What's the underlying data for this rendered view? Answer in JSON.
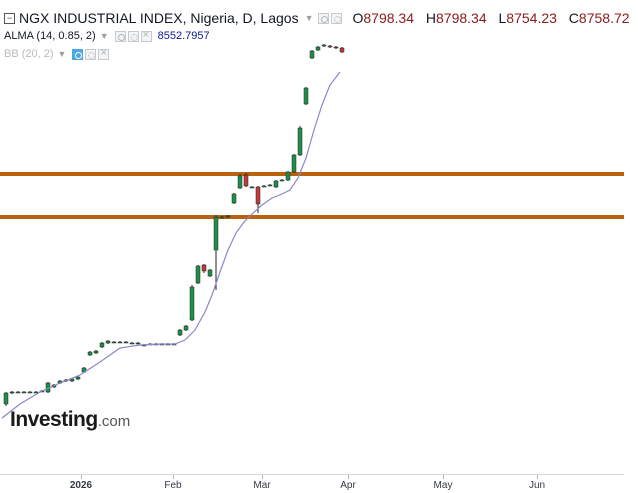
{
  "header": {
    "title": "NGX INDUSTRIAL INDEX, Nigeria, D, Lagos",
    "ohlc": {
      "open_label": "O",
      "open": "8798.34",
      "high_label": "H",
      "high": "8798.34",
      "low_label": "L",
      "low": "8754.23",
      "close_label": "C",
      "close": "8758.72"
    }
  },
  "indicators": {
    "alma": {
      "label": "ALMA (14, 0.85, 2)",
      "value": "8552.7957"
    },
    "bb": {
      "label": "BB (20, 2)"
    }
  },
  "logo": {
    "text": "Investing",
    "suffix": ".com"
  },
  "x_axis": {
    "ticks": [
      {
        "label": "2026",
        "bold": true
      },
      {
        "label": "Feb",
        "bold": false
      },
      {
        "label": "Mar",
        "bold": false
      },
      {
        "label": "Apr",
        "bold": false
      },
      {
        "label": "May",
        "bold": false
      },
      {
        "label": "Jun",
        "bold": false
      }
    ]
  },
  "colors": {
    "up": "#1e8f4a",
    "down": "#c23b3b",
    "alma_line": "#8c87c9",
    "support_line": "#b8610f",
    "value_text": "#8b1a1a"
  },
  "icons": [
    "collapse-icon",
    "eye-icon",
    "gear-icon",
    "close-icon"
  ],
  "chart_data": {
    "type": "candlestick",
    "title": "NGX INDUSTRIAL INDEX, Nigeria, D, Lagos",
    "x_unit": "trading day",
    "horizontal_lines": [
      {
        "name": "resistance",
        "y_pct_of_range": 0.0
      },
      {
        "name": "support",
        "y_pct_of_range": 0.0
      }
    ],
    "series": [
      {
        "name": "ALMA (14, 0.85, 2)",
        "last_value": 8552.7957
      }
    ],
    "last_candle": {
      "open": 8798.34,
      "high": 8798.34,
      "low": 8754.23,
      "close": 8758.72
    }
  }
}
